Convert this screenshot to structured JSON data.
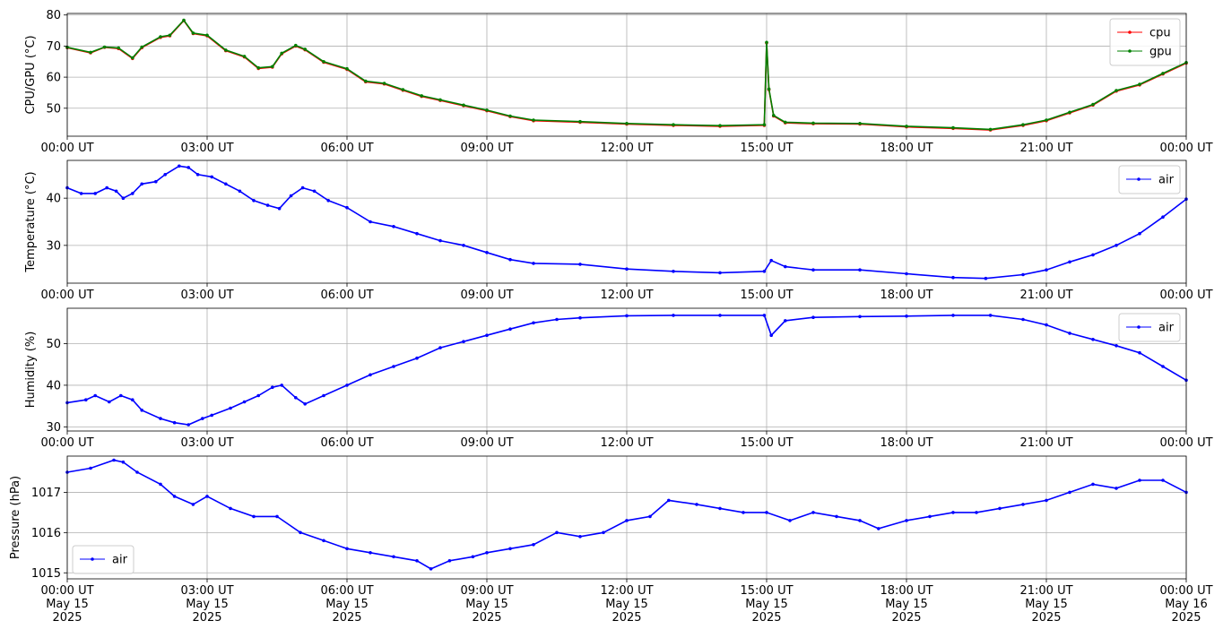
{
  "chart_data": [
    {
      "type": "line",
      "ylabel": "CPU/GPU (°C)",
      "ylim": [
        41,
        80.5
      ],
      "yticks": [
        50,
        60,
        70,
        80
      ],
      "legend_position": "top-right",
      "grid": true,
      "x_tick_labels": [
        "00:00 UT",
        "03:00 UT",
        "06:00 UT",
        "09:00 UT",
        "12:00 UT",
        "15:00 UT",
        "18:00 UT",
        "21:00 UT",
        "00:00 UT"
      ],
      "series": [
        {
          "name": "cpu",
          "color": "#ff0000",
          "x_hours": [
            0,
            0.5,
            0.8,
            1.1,
            1.4,
            1.6,
            2.0,
            2.2,
            2.5,
            2.7,
            3.0,
            3.4,
            3.8,
            4.1,
            4.4,
            4.6,
            4.9,
            5.1,
            5.5,
            6.0,
            6.4,
            6.8,
            7.2,
            7.6,
            8.0,
            8.5,
            9.0,
            9.5,
            10.0,
            11.0,
            12.0,
            13.0,
            14.0,
            14.95,
            15.0,
            15.05,
            15.15,
            15.4,
            16.0,
            17.0,
            18.0,
            19.0,
            19.8,
            20.5,
            21.0,
            21.5,
            22.0,
            22.5,
            23.0,
            23.5,
            24.0
          ],
          "y": [
            69.5,
            67.8,
            69.6,
            69.2,
            66.0,
            69.5,
            72.8,
            73.3,
            78.2,
            74.0,
            73.3,
            68.5,
            66.5,
            62.8,
            63.2,
            67.5,
            70.0,
            68.8,
            64.8,
            62.5,
            58.5,
            57.8,
            55.8,
            53.8,
            52.5,
            50.8,
            49.2,
            47.3,
            46.0,
            45.5,
            44.9,
            44.5,
            44.2,
            44.5,
            71.0,
            56.0,
            47.5,
            45.3,
            45.0,
            44.9,
            44.0,
            43.5,
            43.0,
            44.5,
            46.0,
            48.5,
            51.0,
            55.5,
            57.5,
            61.0,
            64.5
          ]
        },
        {
          "name": "gpu",
          "color": "#008000",
          "x_hours": [
            0,
            0.5,
            0.8,
            1.1,
            1.4,
            1.6,
            2.0,
            2.2,
            2.5,
            2.7,
            3.0,
            3.4,
            3.8,
            4.1,
            4.4,
            4.6,
            4.9,
            5.1,
            5.5,
            6.0,
            6.4,
            6.8,
            7.2,
            7.6,
            8.0,
            8.5,
            9.0,
            9.5,
            10.0,
            11.0,
            12.0,
            13.0,
            14.0,
            14.95,
            15.0,
            15.05,
            15.15,
            15.4,
            16.0,
            17.0,
            18.0,
            19.0,
            19.8,
            20.5,
            21.0,
            21.5,
            22.0,
            22.5,
            23.0,
            23.5,
            24.0
          ],
          "y": [
            69.6,
            68.0,
            69.7,
            69.4,
            66.2,
            69.7,
            73.0,
            73.5,
            78.3,
            74.2,
            73.5,
            68.7,
            66.7,
            63.0,
            63.4,
            67.7,
            70.2,
            69.0,
            65.0,
            62.7,
            58.7,
            58.0,
            56.0,
            54.0,
            52.7,
            51.0,
            49.4,
            47.5,
            46.2,
            45.7,
            45.1,
            44.7,
            44.4,
            44.7,
            71.2,
            56.2,
            47.7,
            45.5,
            45.2,
            45.1,
            44.2,
            43.7,
            43.2,
            44.7,
            46.2,
            48.7,
            51.2,
            55.7,
            57.7,
            61.2,
            64.7
          ]
        }
      ]
    },
    {
      "type": "line",
      "ylabel": "Temperature (°C)",
      "ylim": [
        22,
        48
      ],
      "yticks": [
        30,
        40
      ],
      "legend_position": "top-right",
      "grid": true,
      "x_tick_labels": [
        "00:00 UT",
        "03:00 UT",
        "06:00 UT",
        "09:00 UT",
        "12:00 UT",
        "15:00 UT",
        "18:00 UT",
        "21:00 UT",
        "00:00 UT"
      ],
      "series": [
        {
          "name": "air",
          "color": "#0000ff",
          "x_hours": [
            0,
            0.3,
            0.6,
            0.85,
            1.05,
            1.2,
            1.4,
            1.6,
            1.9,
            2.1,
            2.4,
            2.6,
            2.8,
            3.1,
            3.4,
            3.7,
            4.0,
            4.3,
            4.55,
            4.8,
            5.05,
            5.3,
            5.6,
            6.0,
            6.5,
            7.0,
            7.5,
            8.0,
            8.5,
            9.0,
            9.5,
            10.0,
            11.0,
            12.0,
            13.0,
            14.0,
            14.95,
            15.1,
            15.4,
            16.0,
            17.0,
            18.0,
            19.0,
            19.7,
            20.5,
            21.0,
            21.5,
            22.0,
            22.5,
            23.0,
            23.5,
            24.0
          ],
          "y": [
            42.2,
            41.0,
            41.0,
            42.2,
            41.5,
            40.0,
            41.0,
            43.0,
            43.5,
            45.0,
            46.8,
            46.5,
            45.0,
            44.5,
            43.0,
            41.5,
            39.5,
            38.5,
            37.8,
            40.5,
            42.2,
            41.5,
            39.5,
            38.0,
            35.0,
            34.0,
            32.5,
            31.0,
            30.0,
            28.5,
            27.0,
            26.2,
            26.0,
            25.0,
            24.5,
            24.2,
            24.5,
            26.8,
            25.5,
            24.8,
            24.8,
            24.0,
            23.2,
            23.0,
            23.8,
            24.8,
            26.5,
            28.0,
            30.0,
            32.5,
            36.0,
            39.8
          ]
        }
      ]
    },
    {
      "type": "line",
      "ylabel": "Humidity (%)",
      "ylim": [
        29,
        58.5
      ],
      "yticks": [
        30,
        40,
        50
      ],
      "legend_position": "top-right",
      "grid": true,
      "x_tick_labels": [
        "00:00 UT",
        "03:00 UT",
        "06:00 UT",
        "09:00 UT",
        "12:00 UT",
        "15:00 UT",
        "18:00 UT",
        "21:00 UT",
        "00:00 UT"
      ],
      "series": [
        {
          "name": "air",
          "color": "#0000ff",
          "x_hours": [
            0,
            0.4,
            0.6,
            0.9,
            1.15,
            1.4,
            1.6,
            2.0,
            2.3,
            2.6,
            2.9,
            3.1,
            3.5,
            3.8,
            4.1,
            4.4,
            4.6,
            4.9,
            5.1,
            5.5,
            6.0,
            6.5,
            7.0,
            7.5,
            8.0,
            8.5,
            9.0,
            9.5,
            10.0,
            10.5,
            11.0,
            12.0,
            13.0,
            14.0,
            14.95,
            15.1,
            15.4,
            16.0,
            17.0,
            18.0,
            19.0,
            19.8,
            20.5,
            21.0,
            21.5,
            22.0,
            22.5,
            23.0,
            23.5,
            24.0
          ],
          "y": [
            35.8,
            36.5,
            37.5,
            36.0,
            37.5,
            36.5,
            34.0,
            32.0,
            31.0,
            30.5,
            32.0,
            32.8,
            34.5,
            36.0,
            37.5,
            39.5,
            40.0,
            37.0,
            35.5,
            37.5,
            40.0,
            42.5,
            44.5,
            46.5,
            49.0,
            50.5,
            52.0,
            53.5,
            55.0,
            55.8,
            56.2,
            56.7,
            56.8,
            56.8,
            56.8,
            52.0,
            55.5,
            56.3,
            56.5,
            56.6,
            56.8,
            56.8,
            55.8,
            54.5,
            52.5,
            51.0,
            49.5,
            47.8,
            44.5,
            41.2
          ]
        }
      ]
    },
    {
      "type": "line",
      "ylabel": "Pressure (hPa)",
      "ylim": [
        1014.85,
        1017.9
      ],
      "yticks": [
        1015,
        1016,
        1017
      ],
      "legend_position": "bottom-left",
      "grid": true,
      "x_tick_labels": [
        "00:00 UT\nMay 15\n2025",
        "03:00 UT\nMay 15\n2025",
        "06:00 UT\nMay 15\n2025",
        "09:00 UT\nMay 15\n2025",
        "12:00 UT\nMay 15\n2025",
        "15:00 UT\nMay 15\n2025",
        "18:00 UT\nMay 15\n2025",
        "21:00 UT\nMay 15\n2025",
        "00:00 UT\nMay 16\n2025"
      ],
      "series": [
        {
          "name": "air",
          "color": "#0000ff",
          "x_hours": [
            0,
            0.5,
            1.0,
            1.2,
            1.5,
            2.0,
            2.3,
            2.7,
            3.0,
            3.5,
            4.0,
            4.5,
            5.0,
            5.5,
            6.0,
            6.5,
            7.0,
            7.5,
            7.8,
            8.2,
            8.7,
            9.0,
            9.5,
            10.0,
            10.5,
            11.0,
            11.5,
            12.0,
            12.5,
            12.9,
            13.5,
            14.0,
            14.5,
            15.0,
            15.5,
            16.0,
            16.5,
            17.0,
            17.4,
            18.0,
            18.5,
            19.0,
            19.5,
            20.0,
            20.5,
            21.0,
            21.5,
            22.0,
            22.5,
            23.0,
            23.5,
            24.0
          ],
          "y": [
            1017.5,
            1017.6,
            1017.8,
            1017.75,
            1017.5,
            1017.2,
            1016.9,
            1016.7,
            1016.9,
            1016.6,
            1016.4,
            1016.4,
            1016.0,
            1015.8,
            1015.6,
            1015.5,
            1015.4,
            1015.3,
            1015.1,
            1015.3,
            1015.4,
            1015.5,
            1015.6,
            1015.7,
            1016.0,
            1015.9,
            1016.0,
            1016.3,
            1016.4,
            1016.8,
            1016.7,
            1016.6,
            1016.5,
            1016.5,
            1016.3,
            1016.5,
            1016.4,
            1016.3,
            1016.1,
            1016.3,
            1016.4,
            1016.5,
            1016.5,
            1016.6,
            1016.7,
            1016.8,
            1017.0,
            1017.2,
            1017.1,
            1017.3,
            1017.3,
            1017.0
          ]
        }
      ]
    }
  ]
}
